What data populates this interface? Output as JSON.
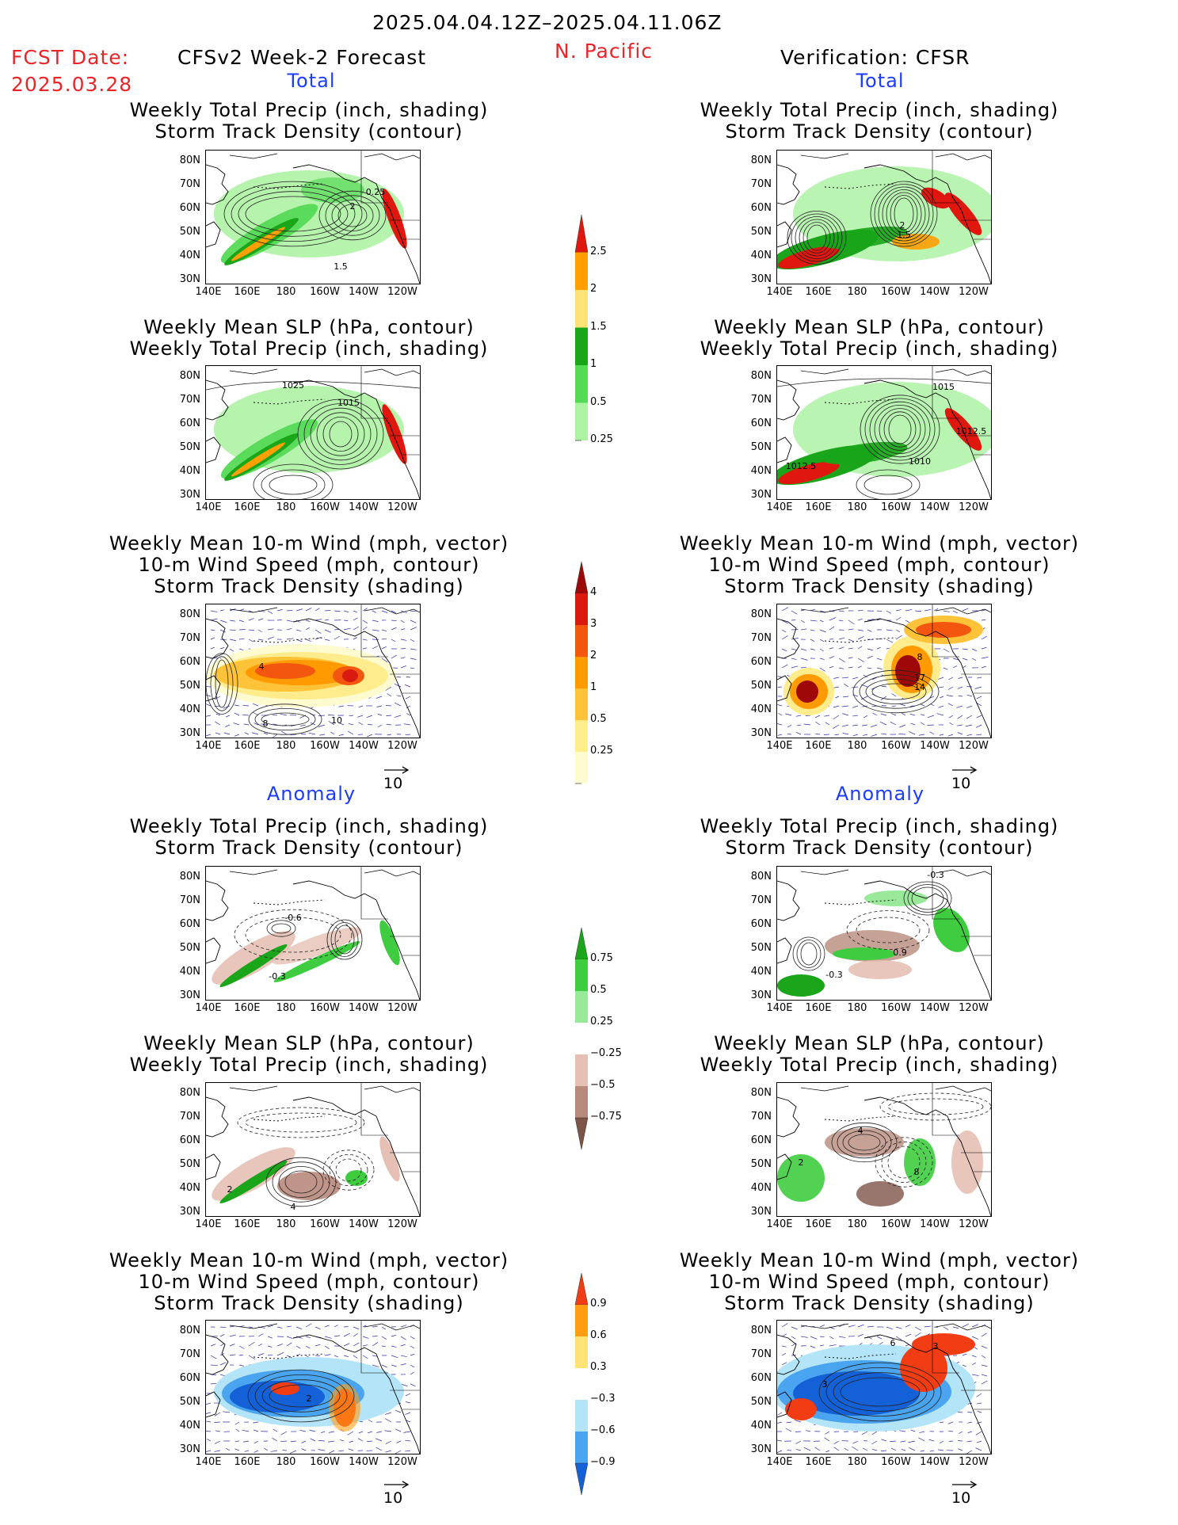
{
  "header": {
    "period": "2025.04.04.12Z–2025.04.11.06Z",
    "fcst_label": "FCST Date:",
    "fcst_date": "2025.03.28",
    "left_title": "CFSv2 Week-2 Forecast",
    "region": "N. Pacific",
    "right_title": "Verification: CFSR"
  },
  "sections": {
    "total": "Total",
    "anomaly": "Anomaly"
  },
  "panel_titles": {
    "precip_track": [
      "Weekly Total Precip (inch, shading)",
      "Storm Track Density (contour)"
    ],
    "slp_precip": [
      "Weekly Mean SLP (hPa, contour)",
      "Weekly Total Precip (inch, shading)"
    ],
    "wind_track": [
      "Weekly Mean 10-m Wind (mph, vector)",
      "10-m Wind Speed (mph, contour)",
      "Storm Track Density (shading)"
    ]
  },
  "axes": {
    "lat_labels": [
      "80N",
      "70N",
      "60N",
      "50N",
      "40N",
      "30N"
    ],
    "lon_labels": [
      "140E",
      "160E",
      "180",
      "160W",
      "140W",
      "120W"
    ]
  },
  "vector_ref": "10",
  "colorbars": {
    "precip_total": {
      "labels": [
        "2.5",
        "2",
        "1.5",
        "1",
        "0.5",
        "0.25"
      ],
      "colors": [
        "#e0170f",
        "#ff9f00",
        "#ffe27a",
        "#1aa51a",
        "#56d956",
        "#aef2a4"
      ]
    },
    "track_total": {
      "labels": [
        "4",
        "3",
        "2",
        "1",
        "0.5",
        "0.25"
      ],
      "colors": [
        "#9e0808",
        "#d91a10",
        "#f2560f",
        "#ff9a00",
        "#ffc33a",
        "#ffec8c",
        "#fffbd0"
      ]
    },
    "precip_anom": {
      "labels": [
        "0.75",
        "0.5",
        "0.25",
        "−0.25",
        "−0.5",
        "−0.75"
      ],
      "colors": [
        "#1aa51a",
        "#40cc40",
        "#9ae89a",
        "#ffffff",
        "#e6c0b4",
        "#b88a7c",
        "#7e5448"
      ]
    },
    "track_anom": {
      "labels": [
        "0.9",
        "0.6",
        "0.3",
        "−0.3",
        "−0.6",
        "−0.9"
      ],
      "colors": [
        "#f23c14",
        "#ff9e14",
        "#ffe27a",
        "#ffffff",
        "#b4e4f7",
        "#4aa4ef",
        "#1460d6"
      ]
    }
  },
  "panel_labels": {
    "l1": [
      "2",
      "0.25",
      "1.5"
    ],
    "r1": [
      "2",
      "1.5"
    ],
    "l2": [
      "1025",
      "1015"
    ],
    "r2": [
      "1015",
      "1012.5",
      "1010",
      "1012.5"
    ],
    "l3": [
      "4",
      "8",
      "10"
    ],
    "r3": [
      "8",
      "17",
      "14"
    ],
    "l4": [
      "-0.6",
      "-0.3"
    ],
    "r4": [
      "-0.3",
      "0.9",
      "-0.3"
    ],
    "l5": [
      "2",
      "4"
    ],
    "r5": [
      "4",
      "2",
      "8"
    ],
    "l6": [
      "2"
    ],
    "r6": [
      "6",
      "3",
      "3"
    ]
  }
}
